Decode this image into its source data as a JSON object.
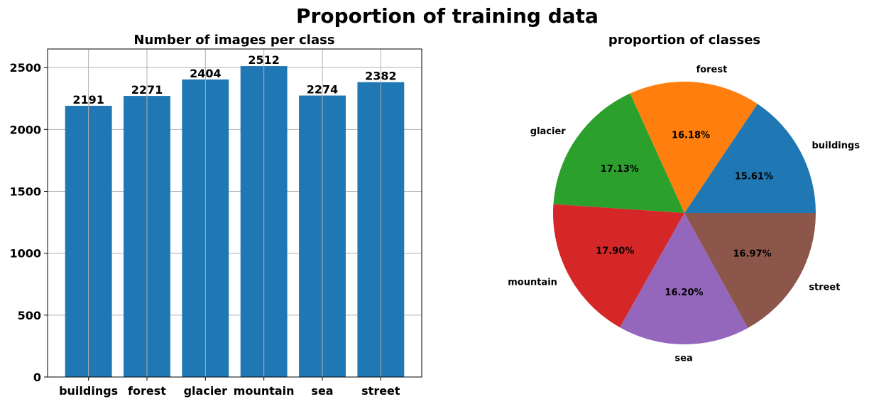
{
  "suptitle": "Proportion of training data",
  "chart_data": [
    {
      "type": "bar",
      "title": "Number of images per class",
      "xlabel": "",
      "ylabel": "",
      "categories": [
        "buildings",
        "forest",
        "glacier",
        "mountain",
        "sea",
        "street"
      ],
      "values": [
        2191,
        2271,
        2404,
        2512,
        2274,
        2382
      ],
      "data_labels": [
        "2191",
        "2271",
        "2404",
        "2512",
        "2274",
        "2382"
      ],
      "ylim": [
        0,
        2650
      ],
      "yticks": [
        0,
        500,
        1000,
        1500,
        2000,
        2500
      ],
      "grid": true,
      "color": "#1f77b4"
    },
    {
      "type": "pie",
      "title": "proportion of classes",
      "labels": [
        "buildings",
        "forest",
        "glacier",
        "mountain",
        "sea",
        "street"
      ],
      "values": [
        15.61,
        16.18,
        17.13,
        17.9,
        16.2,
        16.97
      ],
      "pct_labels": [
        "15.61%",
        "16.18%",
        "17.13%",
        "17.90%",
        "16.20%",
        "16.97%"
      ],
      "colors": [
        "#1f77b4",
        "#ff7f0e",
        "#2ca02c",
        "#d62728",
        "#9467bd",
        "#8c564b"
      ]
    }
  ]
}
